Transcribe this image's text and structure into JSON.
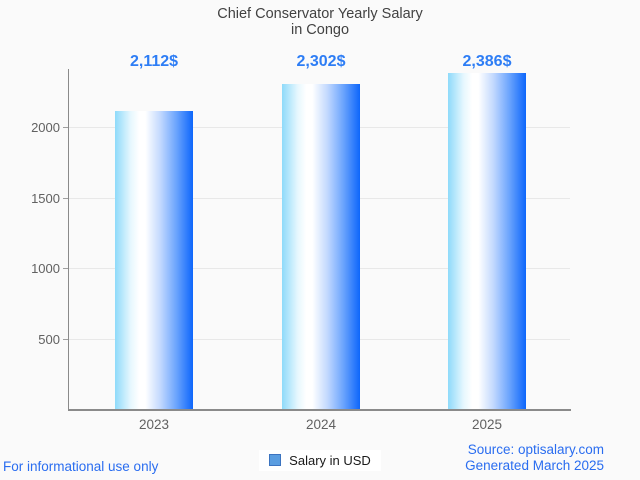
{
  "title": {
    "line1": "Chief Conservator Yearly Salary",
    "line2": "in Congo"
  },
  "legend": {
    "label": "Salary in USD",
    "swatch_fill": "#5a9de0",
    "swatch_border": "#3c74c0"
  },
  "footer": {
    "left": "For informational use only",
    "source": "Source: optisalary.com",
    "generated": "Generated March 2025"
  },
  "colors": {
    "background": "#fafafa",
    "title_text": "#424242",
    "value_text": "#2d7df5",
    "footer_text": "#2a6df0",
    "axis_line": "#8a8a8a",
    "grid_line": "#e8e8e8",
    "tick_text": "#616161",
    "bar_gradient_left": "#8edafa",
    "bar_gradient_mid": "#ffffff",
    "bar_gradient_right": "#0d66fb"
  },
  "chart_data": {
    "type": "bar",
    "title": "Chief Conservator Yearly Salary in Congo",
    "categories": [
      "2023",
      "2024",
      "2025"
    ],
    "values": [
      2112,
      2302,
      2386
    ],
    "value_labels": [
      "2,112$",
      "2,302$",
      "2,386$"
    ],
    "series_name": "Salary in USD",
    "yticks": [
      500,
      1000,
      1500,
      2000
    ],
    "ylim": [
      0,
      2415
    ],
    "grid": true,
    "legend_position": "bottom",
    "xlabel": "",
    "ylabel": ""
  }
}
